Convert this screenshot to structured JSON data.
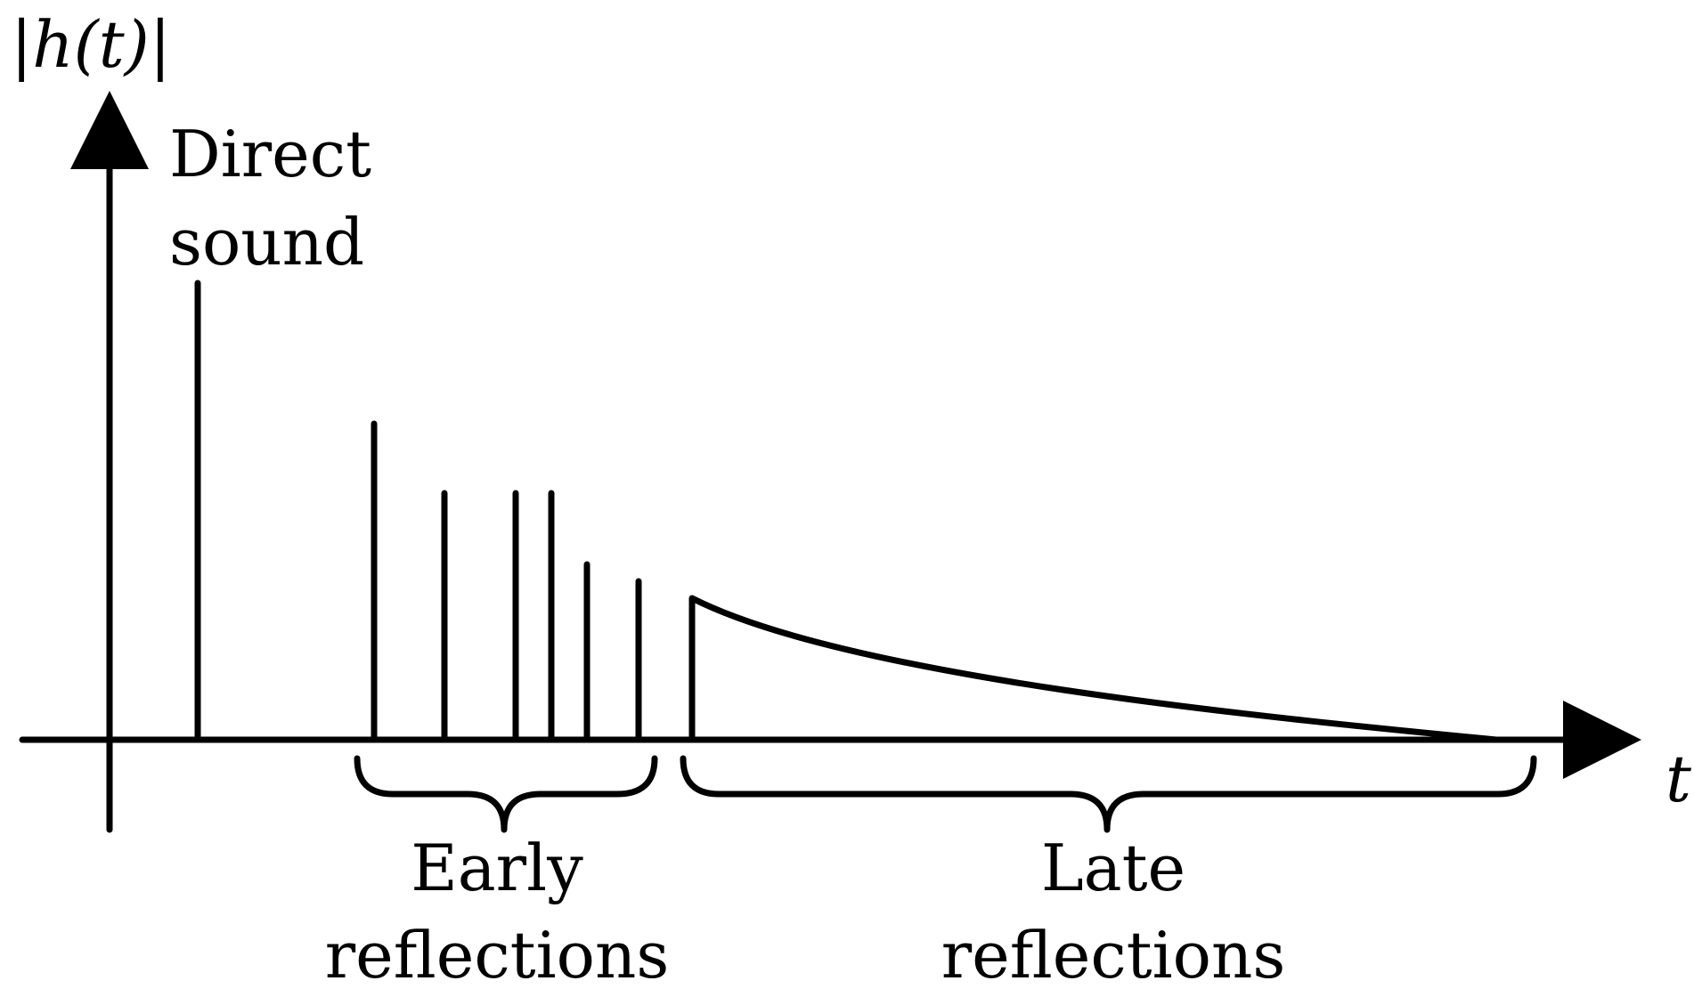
{
  "diagram": {
    "y_axis_label": "|h(t)|",
    "x_axis_label": "t",
    "direct_label_line1": "Direct",
    "direct_label_line2": "sound",
    "early_label_line1": "Early",
    "early_label_line2": "reflections",
    "late_label_line1": "Late",
    "late_label_line2": "reflections"
  },
  "chart_data": {
    "type": "impulse-response",
    "x_axis_label": "t",
    "y_axis_label": "|h(t)|",
    "direct_sound_height": 0.89,
    "early_reflection_heights": [
      0.62,
      0.48,
      0.48,
      0.48,
      0.34,
      0.31
    ],
    "late_reflection_start_height": 0.28,
    "late_reflection_decay": "exponential-to-zero",
    "stroke_color": "#000000",
    "background_color": "#ffffff"
  }
}
